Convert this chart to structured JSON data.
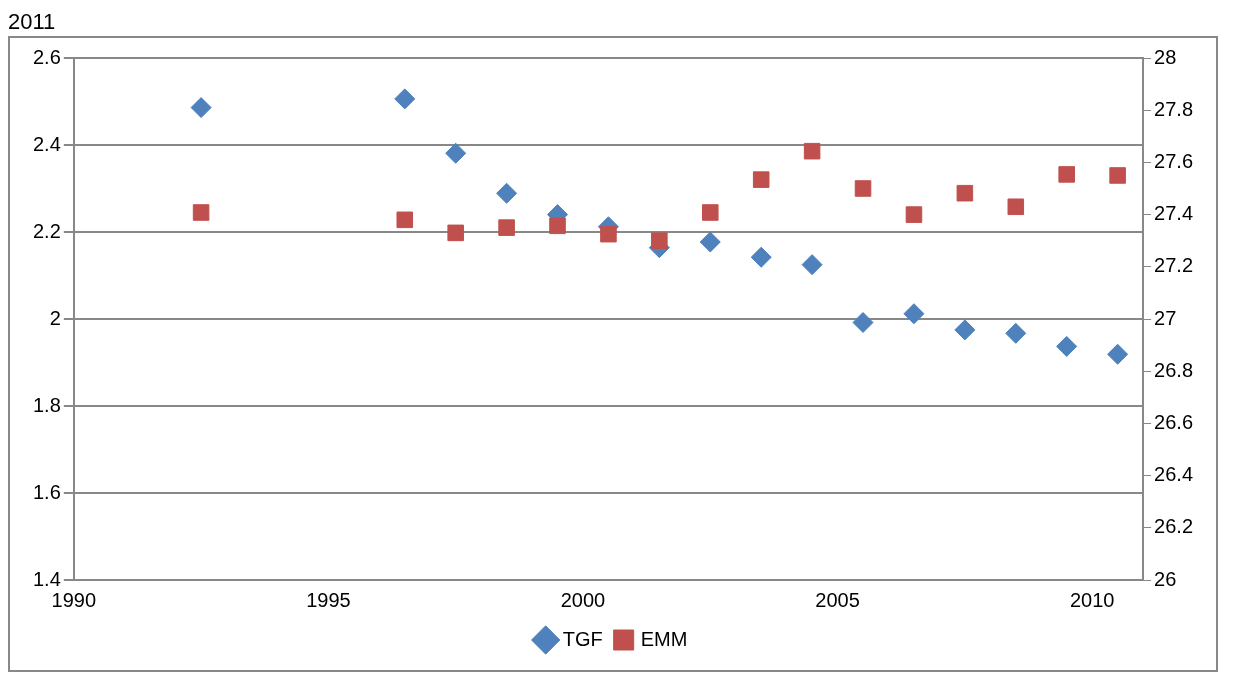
{
  "chart_data": {
    "type": "scatter",
    "title": "2011",
    "x": [
      1992.5,
      1996.5,
      1997.5,
      1998.5,
      1999.5,
      2000.5,
      2001.5,
      2002.5,
      2003.5,
      2004.5,
      2005.5,
      2006.5,
      2007.5,
      2008.5,
      2009.5,
      2010.5
    ],
    "series": [
      {
        "name": "TGF",
        "color": "#4f81bd",
        "marker": "diamond",
        "values": [
          2.486,
          2.506,
          2.381,
          2.289,
          2.24,
          2.212,
          2.164,
          2.177,
          2.142,
          2.125,
          1.992,
          2.012,
          1.975,
          1.967,
          1.937,
          1.919
        ]
      },
      {
        "name": "EMM",
        "color": "#c0504d",
        "marker": "square",
        "axis": "y2",
        "values": [
          27.408,
          27.38,
          27.33,
          27.35,
          27.357,
          27.325,
          27.3,
          27.408,
          27.534,
          27.643,
          27.5,
          27.4,
          27.482,
          27.43,
          27.554,
          27.55
        ]
      }
    ],
    "xlim": [
      1990,
      2011
    ],
    "xticks": [
      1990,
      1995,
      2000,
      2005,
      2010
    ],
    "ylim": [
      1.4,
      2.6
    ],
    "yticks": [
      1.4,
      1.6,
      1.8,
      2,
      2.2,
      2.4,
      2.6
    ],
    "y2lim": [
      26,
      28
    ],
    "y2ticks": [
      26,
      26.2,
      26.4,
      26.6,
      26.8,
      27,
      27.2,
      27.4,
      27.6,
      27.8,
      28
    ],
    "grid": "y",
    "legend": "bottom"
  }
}
